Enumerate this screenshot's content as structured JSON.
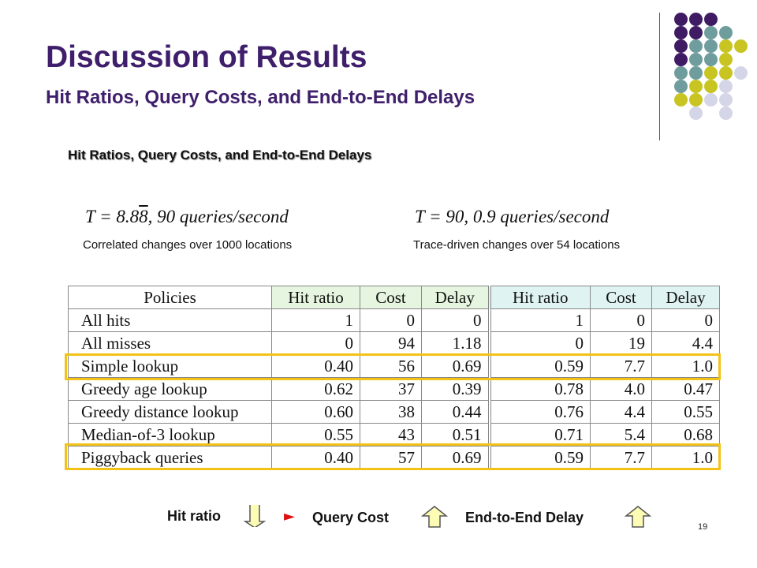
{
  "slide": {
    "title": "Discussion of Results",
    "subtitle": "Hit Ratios, Query Costs, and End-to-End Delays",
    "section_heading": "Hit Ratios, Query Costs, and End-to-End Delays",
    "page_number": "19"
  },
  "conditions": {
    "left": {
      "formula_prefix": "T = 8.8",
      "formula_overline": "8",
      "formula_suffix": ", 90 queries/second",
      "caption": "Correlated changes over 1000 locations"
    },
    "right": {
      "formula": "T = 90, 0.9 queries/second",
      "caption": "Trace-driven changes over 54 locations"
    }
  },
  "table": {
    "headers": [
      "Policies",
      "Hit ratio",
      "Cost",
      "Delay",
      "Hit ratio",
      "Cost",
      "Delay"
    ],
    "rows": [
      [
        "All hits",
        "1",
        "0",
        "0",
        "1",
        "0",
        "0"
      ],
      [
        "All misses",
        "0",
        "94",
        "1.18",
        "0",
        "19",
        "4.4"
      ],
      [
        "Simple lookup",
        "0.40",
        "56",
        "0.69",
        "0.59",
        "7.7",
        "1.0"
      ],
      [
        "Greedy age lookup",
        "0.62",
        "37",
        "0.39",
        "0.78",
        "4.0",
        "0.47"
      ],
      [
        "Greedy distance lookup",
        "0.60",
        "38",
        "0.44",
        "0.76",
        "4.4",
        "0.55"
      ],
      [
        "Median-of-3 lookup",
        "0.55",
        "43",
        "0.51",
        "0.71",
        "5.4",
        "0.68"
      ],
      [
        "Piggyback queries",
        "0.40",
        "57",
        "0.69",
        "0.59",
        "7.7",
        "1.0"
      ]
    ],
    "highlighted_rows": [
      "Simple lookup",
      "Piggyback queries"
    ]
  },
  "legend": {
    "hit_ratio": "Hit ratio",
    "arrow": "►",
    "query_cost": "Query Cost",
    "delay": "End-to-End Delay",
    "hit_ratio_icon": "down-arrow-icon",
    "query_cost_icon": "up-arrow-icon",
    "delay_icon": "up-arrow-icon"
  },
  "colors": {
    "title": "#3f1f6b",
    "highlight": "#f2c316",
    "header_left": "#e6f5e0",
    "header_right": "#e0f3f3",
    "arrow_fill": "#fcfcb4",
    "dot_purple": "#3f1b63",
    "dot_teal": "#6f9c9c",
    "dot_yellow": "#c8c421",
    "dot_light": "#d5d5e8"
  }
}
